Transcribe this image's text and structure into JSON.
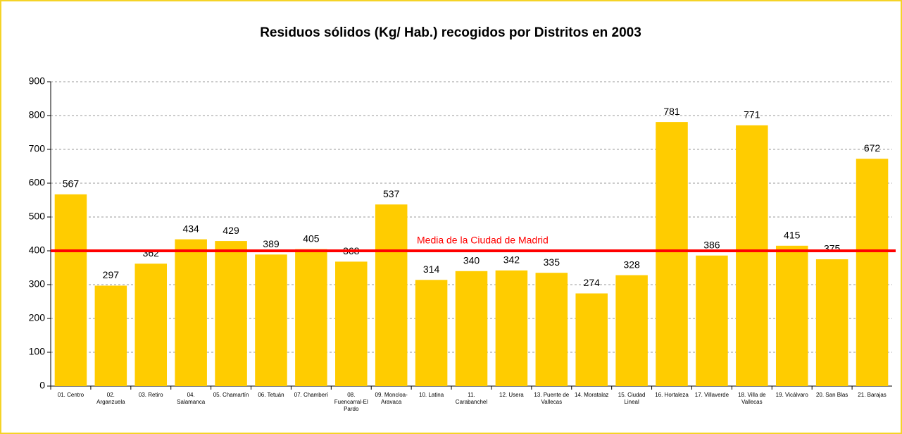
{
  "chart_data": {
    "type": "bar",
    "title": "Residuos sólidos (Kg/ Hab.) recogidos por Distritos en 2003",
    "categories": [
      "01. Centro",
      "02. Arganzuela",
      "03. Retiro",
      "04. Salamanca",
      "05. Chamartín",
      "06. Tetuán",
      "07. Chamberí",
      "08. Fuencarral-El Pardo",
      "09. Moncloa-Aravaca",
      "10. Latina",
      "11. Carabanchel",
      "12. Usera",
      "13. Puente de Vallecas",
      "14. Moratalaz",
      "15. Ciudad Lineal",
      "16. Hortaleza",
      "17. Villaverde",
      "18. Villa de Vallecas",
      "19. Vicálvaro",
      "20. San Blas",
      "21. Barajas"
    ],
    "values": [
      567,
      297,
      362,
      434,
      429,
      389,
      405,
      368,
      537,
      314,
      340,
      342,
      335,
      274,
      328,
      781,
      386,
      771,
      415,
      375,
      672
    ],
    "color": "#ffcc00",
    "ylim": [
      0,
      900
    ],
    "yticks": [
      0,
      100,
      200,
      300,
      400,
      500,
      600,
      700,
      800,
      900
    ],
    "grid": true,
    "reference_line": {
      "value": 400,
      "label": "Media de la Ciudad de Madrid",
      "color": "#ff0000"
    }
  }
}
